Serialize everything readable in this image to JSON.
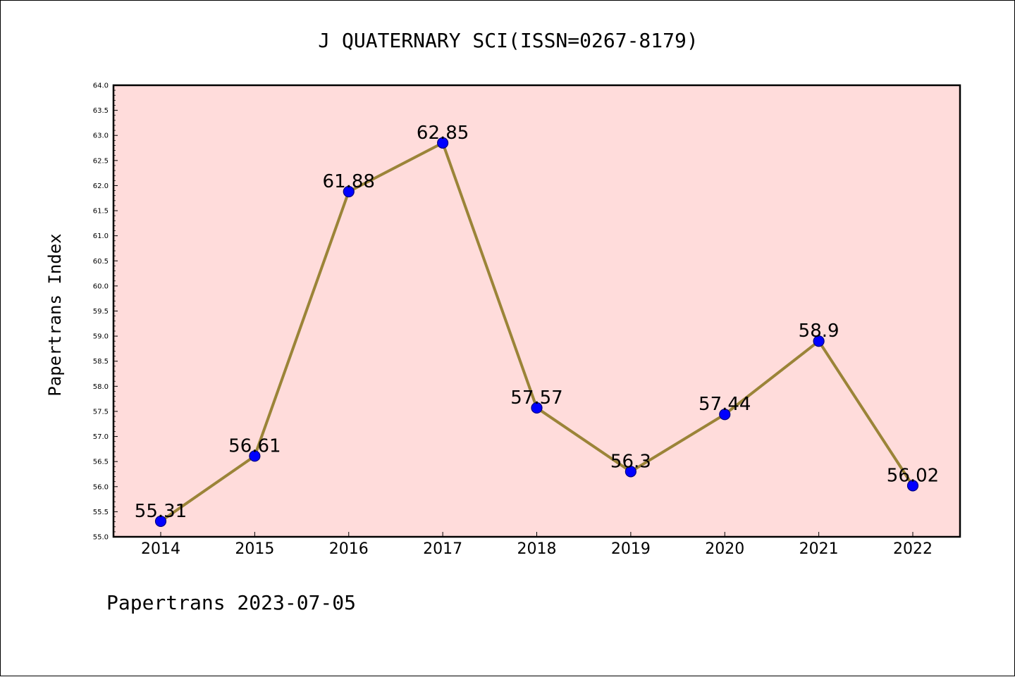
{
  "chart_data": {
    "type": "line",
    "title": "J QUATERNARY SCI(ISSN=0267-8179)",
    "ylabel": "Papertrans Index",
    "xlabel": "",
    "footer": "Papertrans 2023-07-05",
    "categories": [
      "2014",
      "2015",
      "2016",
      "2017",
      "2018",
      "2019",
      "2020",
      "2021",
      "2022"
    ],
    "series": [
      {
        "values": [
          55.31,
          56.61,
          61.88,
          62.85,
          57.57,
          56.3,
          57.44,
          58.9,
          56.02
        ],
        "data_labels": [
          "55.31",
          "56.61",
          "61.88",
          "62.85",
          "57.57",
          "56.3",
          "57.44",
          "58.9",
          "56.02"
        ]
      }
    ],
    "ylim": [
      55.0,
      64.0
    ],
    "yticks": [
      "55.0",
      "55.5",
      "56.0",
      "56.5",
      "57.0",
      "57.5",
      "58.0",
      "58.5",
      "59.0",
      "59.5",
      "60.0",
      "60.5",
      "61.0",
      "61.5",
      "62.0",
      "62.5",
      "63.0",
      "63.5",
      "64.0"
    ],
    "grid": false,
    "colors": {
      "plot_background": "#ffdcdb",
      "line": "#9b8438",
      "marker": "#0000ff",
      "marker_edge": "#000080"
    }
  }
}
